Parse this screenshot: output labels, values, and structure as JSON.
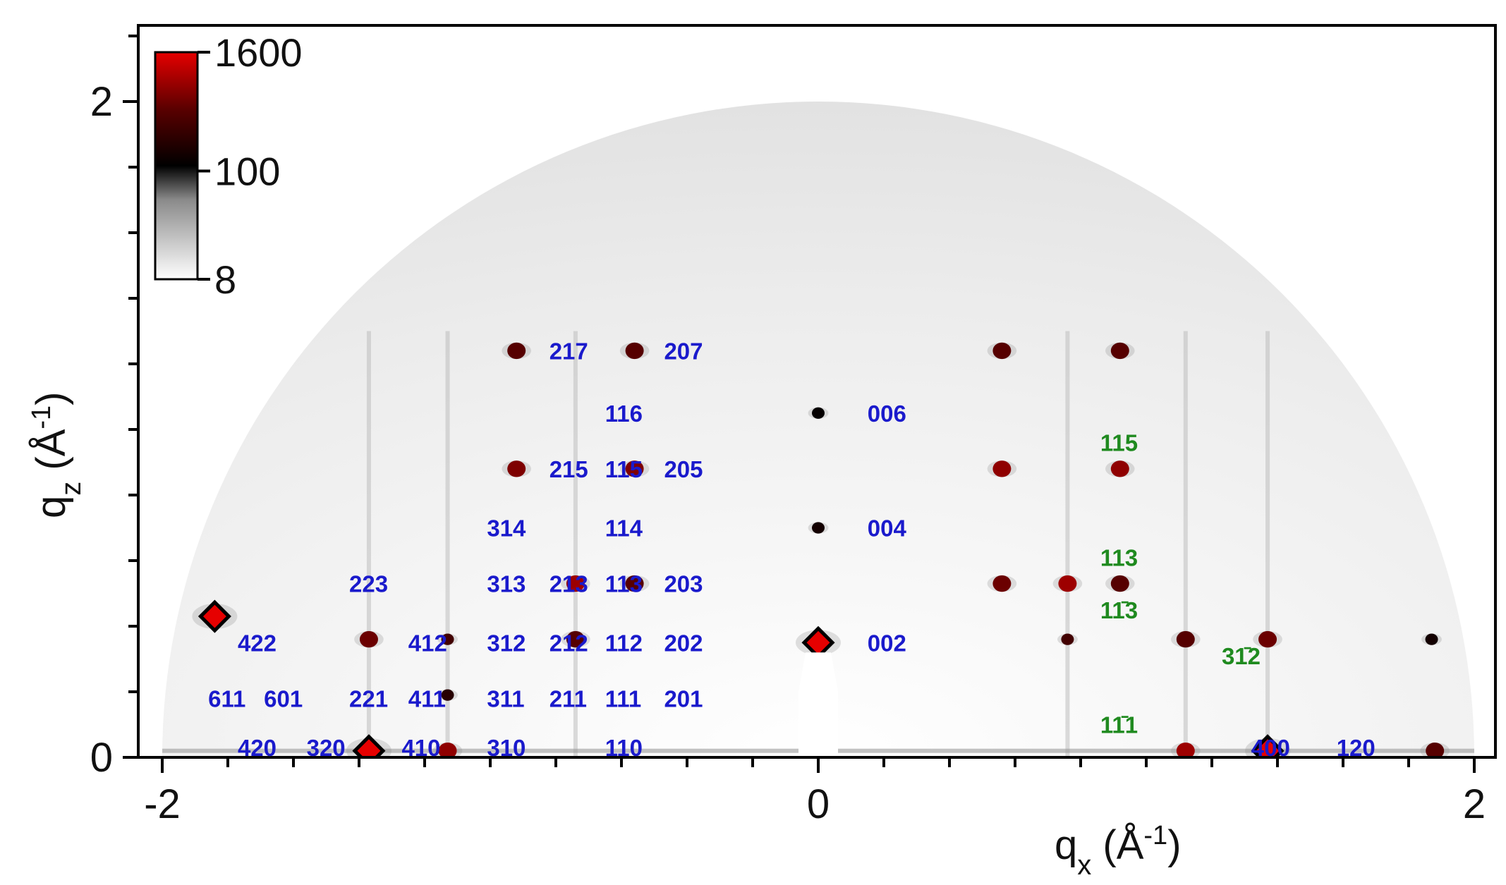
{
  "chart_data": {
    "type": "heatmap",
    "x_axis": {
      "label_main": "q",
      "label_sub": "x",
      "label_unit_open": " (Å",
      "label_unit_sup": "-1",
      "label_unit_close": ")",
      "range": [
        -2,
        2
      ],
      "ticks": [
        {
          "value": -2,
          "label": "-2"
        },
        {
          "value": 0,
          "label": "0"
        },
        {
          "value": 2,
          "label": "2"
        }
      ],
      "minor_step": 0.2
    },
    "y_axis": {
      "label_main": "q",
      "label_sub": "z",
      "label_unit_open": " (Å",
      "label_unit_sup": "-1",
      "label_unit_close": ")",
      "range": [
        0,
        2.2
      ],
      "ticks": [
        {
          "value": 0,
          "label": "0"
        },
        {
          "value": 2,
          "label": "2"
        }
      ],
      "minor_step": 0.2
    },
    "colorbar": {
      "scale": "log",
      "ticks": [
        {
          "value": 1600,
          "label": "1600"
        },
        {
          "value": 100,
          "label": "100"
        },
        {
          "value": 8,
          "label": "8"
        }
      ],
      "colors": [
        "#ffffff",
        "#8a8a8a",
        "#000000",
        "#5a0000",
        "#e60000"
      ]
    },
    "detector_radius": 2.0,
    "peaks": [
      {
        "qx": -1.84,
        "qz": 0.43,
        "intensity": 1600
      },
      {
        "qx": -1.37,
        "qz": 0.36,
        "intensity": 500
      },
      {
        "qx": -1.37,
        "qz": 0.02,
        "intensity": 1600
      },
      {
        "qx": -1.13,
        "qz": 0.36,
        "intensity": 300
      },
      {
        "qx": -1.13,
        "qz": 0.19,
        "intensity": 200
      },
      {
        "qx": -1.13,
        "qz": 0.02,
        "intensity": 700
      },
      {
        "qx": -0.92,
        "qz": 1.24,
        "intensity": 400
      },
      {
        "qx": -0.92,
        "qz": 0.88,
        "intensity": 600
      },
      {
        "qx": -0.74,
        "qz": 0.53,
        "intensity": 800
      },
      {
        "qx": -0.74,
        "qz": 0.36,
        "intensity": 400
      },
      {
        "qx": -0.56,
        "qz": 1.24,
        "intensity": 400
      },
      {
        "qx": -0.56,
        "qz": 0.88,
        "intensity": 600
      },
      {
        "qx": -0.56,
        "qz": 0.53,
        "intensity": 400
      },
      {
        "qx": 0.0,
        "qz": 0.35,
        "intensity": 1600
      },
      {
        "qx": 0.0,
        "qz": 0.7,
        "intensity": 150
      },
      {
        "qx": 0.0,
        "qz": 1.05,
        "intensity": 120
      },
      {
        "qx": 0.56,
        "qz": 1.24,
        "intensity": 400
      },
      {
        "qx": 0.56,
        "qz": 0.88,
        "intensity": 700
      },
      {
        "qx": 0.56,
        "qz": 0.53,
        "intensity": 500
      },
      {
        "qx": 0.76,
        "qz": 0.53,
        "intensity": 800
      },
      {
        "qx": 0.76,
        "qz": 0.36,
        "intensity": 300
      },
      {
        "qx": 0.92,
        "qz": 1.24,
        "intensity": 400
      },
      {
        "qx": 0.92,
        "qz": 0.88,
        "intensity": 700
      },
      {
        "qx": 0.92,
        "qz": 0.53,
        "intensity": 400
      },
      {
        "qx": 1.12,
        "qz": 0.36,
        "intensity": 400
      },
      {
        "qx": 1.12,
        "qz": 0.02,
        "intensity": 800
      },
      {
        "qx": 1.37,
        "qz": 0.36,
        "intensity": 500
      },
      {
        "qx": 1.37,
        "qz": 0.02,
        "intensity": 1600
      },
      {
        "qx": 1.87,
        "qz": 0.36,
        "intensity": 150
      },
      {
        "qx": 1.88,
        "qz": 0.02,
        "intensity": 400
      }
    ],
    "labels": [
      {
        "text": "217",
        "qx": -0.82,
        "qz": 1.24,
        "color": "#1a1acc"
      },
      {
        "text": "207",
        "qx": -0.47,
        "qz": 1.24,
        "color": "#1a1acc"
      },
      {
        "text": "116",
        "qx": -0.65,
        "qz": 1.05,
        "color": "#1a1acc"
      },
      {
        "text": "006",
        "qx": 0.15,
        "qz": 1.05,
        "color": "#1a1acc"
      },
      {
        "text": "215",
        "qx": -0.82,
        "qz": 0.88,
        "color": "#1a1acc"
      },
      {
        "text": "115",
        "qx": -0.65,
        "qz": 0.88,
        "color": "#1a1acc"
      },
      {
        "text": "205",
        "qx": -0.47,
        "qz": 0.88,
        "color": "#1a1acc"
      },
      {
        "text": "314",
        "qx": -1.01,
        "qz": 0.7,
        "color": "#1a1acc"
      },
      {
        "text": "114",
        "qx": -0.65,
        "qz": 0.7,
        "color": "#1a1acc"
      },
      {
        "text": "004",
        "qx": 0.15,
        "qz": 0.7,
        "color": "#1a1acc"
      },
      {
        "text": "223",
        "qx": -1.43,
        "qz": 0.53,
        "color": "#1a1acc"
      },
      {
        "text": "313",
        "qx": -1.01,
        "qz": 0.53,
        "color": "#1a1acc"
      },
      {
        "text": "213",
        "qx": -0.82,
        "qz": 0.53,
        "color": "#1a1acc"
      },
      {
        "text": "113",
        "qx": -0.65,
        "qz": 0.53,
        "color": "#1a1acc"
      },
      {
        "text": "203",
        "qx": -0.47,
        "qz": 0.53,
        "color": "#1a1acc"
      },
      {
        "text": "422",
        "qx": -1.77,
        "qz": 0.35,
        "color": "#1a1acc"
      },
      {
        "text": "412",
        "qx": -1.25,
        "qz": 0.35,
        "color": "#1a1acc"
      },
      {
        "text": "312",
        "qx": -1.01,
        "qz": 0.35,
        "color": "#1a1acc"
      },
      {
        "text": "212",
        "qx": -0.82,
        "qz": 0.35,
        "color": "#1a1acc"
      },
      {
        "text": "112",
        "qx": -0.65,
        "qz": 0.35,
        "color": "#1a1acc"
      },
      {
        "text": "202",
        "qx": -0.47,
        "qz": 0.35,
        "color": "#1a1acc"
      },
      {
        "text": "002",
        "qx": 0.15,
        "qz": 0.35,
        "color": "#1a1acc"
      },
      {
        "text": "611",
        "qx": -1.86,
        "qz": 0.18,
        "color": "#1a1acc"
      },
      {
        "text": "601",
        "qx": -1.69,
        "qz": 0.18,
        "color": "#1a1acc"
      },
      {
        "text": "221",
        "qx": -1.43,
        "qz": 0.18,
        "color": "#1a1acc"
      },
      {
        "text": "411",
        "qx": -1.25,
        "qz": 0.18,
        "color": "#1a1acc"
      },
      {
        "text": "311",
        "qx": -1.01,
        "qz": 0.18,
        "color": "#1a1acc"
      },
      {
        "text": "211",
        "qx": -0.82,
        "qz": 0.18,
        "color": "#1a1acc"
      },
      {
        "text": "111",
        "qx": -0.65,
        "qz": 0.18,
        "color": "#1a1acc"
      },
      {
        "text": "201",
        "qx": -0.47,
        "qz": 0.18,
        "color": "#1a1acc"
      },
      {
        "text": "420",
        "qx": -1.77,
        "qz": 0.03,
        "color": "#1a1acc"
      },
      {
        "text": "320",
        "qx": -1.56,
        "qz": 0.03,
        "color": "#1a1acc"
      },
      {
        "text": "410",
        "qx": -1.27,
        "qz": 0.03,
        "color": "#1a1acc"
      },
      {
        "text": "310",
        "qx": -1.01,
        "qz": 0.03,
        "color": "#1a1acc"
      },
      {
        "text": "110",
        "qx": -0.65,
        "qz": 0.03,
        "color": "#1a1acc"
      },
      {
        "text": "400",
        "qx": 1.32,
        "qz": 0.03,
        "color": "#1a1acc"
      },
      {
        "text": "120",
        "qx": 1.58,
        "qz": 0.03,
        "color": "#1a1acc"
      },
      {
        "text": "115",
        "qx": 0.86,
        "qz": 0.96,
        "color": "#1f8a1f"
      },
      {
        "text": "113",
        "qx": 0.86,
        "qz": 0.61,
        "color": "#1f8a1f"
      },
      {
        "text": "11̄3",
        "qx": 0.86,
        "qz": 0.45,
        "color": "#1f8a1f"
      },
      {
        "text": "31̄2",
        "qx": 1.23,
        "qz": 0.31,
        "color": "#1f8a1f"
      },
      {
        "text": "11̄1",
        "qx": 0.86,
        "qz": 0.1,
        "color": "#1f8a1f"
      }
    ]
  }
}
